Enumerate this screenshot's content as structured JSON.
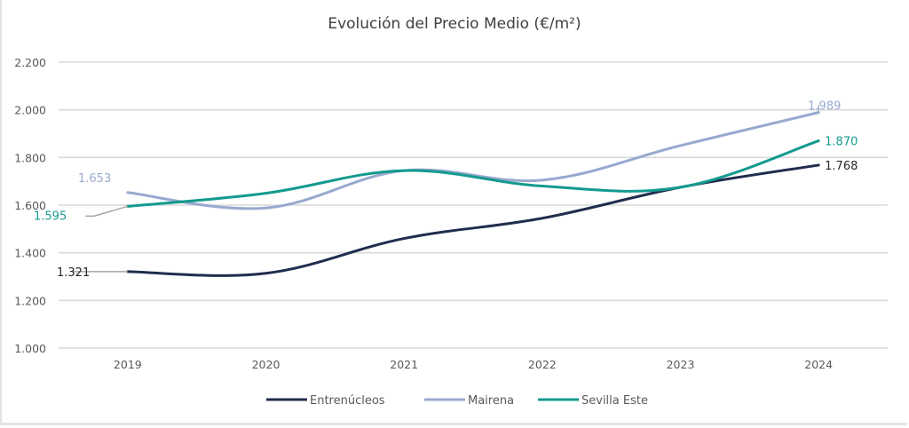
{
  "chart_data": {
    "type": "line",
    "title": "Evolución del Precio Medio (€/m²)",
    "xlabel": "",
    "ylabel": "",
    "categories": [
      "2019",
      "2020",
      "2021",
      "2022",
      "2023",
      "2024"
    ],
    "ylim": [
      1000,
      2200
    ],
    "yticks": [
      1000,
      1200,
      1400,
      1600,
      1800,
      2000,
      2200
    ],
    "ytick_labels": [
      "1.000",
      "1.200",
      "1.400",
      "1.600",
      "1.800",
      "2.000",
      "2.200"
    ],
    "grid": true,
    "legend_position": "bottom",
    "smooth": true,
    "series": [
      {
        "name": "Entrenúcleos",
        "color": "#1f2d4e",
        "values": [
          1321,
          1314,
          1460,
          1545,
          1675,
          1768
        ],
        "labels": [
          {
            "index": 0,
            "text": "1.321"
          },
          {
            "index": 5,
            "text": "1.768"
          }
        ]
      },
      {
        "name": "Mairena",
        "color": "#98a9cf",
        "values": [
          1653,
          1588,
          1745,
          1705,
          1850,
          1989
        ],
        "labels": [
          {
            "index": 0,
            "text": "1.653"
          },
          {
            "index": 5,
            "text": "1.989"
          }
        ]
      },
      {
        "name": "Sevilla Este",
        "color": "#139a8e",
        "values": [
          1595,
          1650,
          1745,
          1680,
          1675,
          1870
        ],
        "labels": [
          {
            "index": 0,
            "text": "1.595"
          },
          {
            "index": 5,
            "text": "1.870"
          }
        ]
      }
    ],
    "leader_line_color": "#a6a6a6",
    "gridline_color": "#d9d9d9"
  }
}
